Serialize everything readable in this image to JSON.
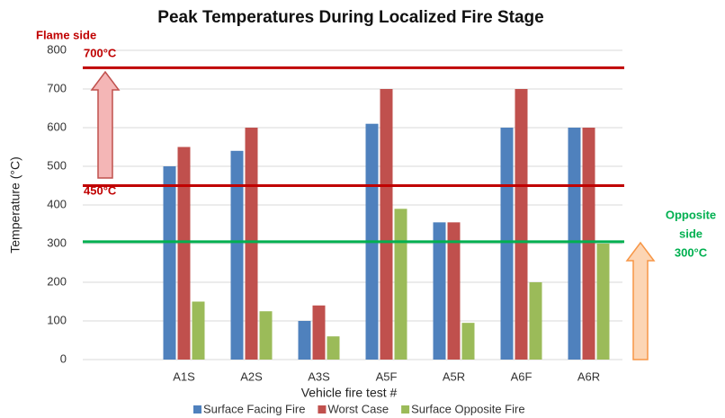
{
  "chart_data": {
    "type": "bar",
    "title": "Peak Temperatures During Localized Fire Stage",
    "xlabel": "Vehicle fire test #",
    "ylabel": "Temperature (°C)",
    "categories": [
      null,
      "A1S",
      "A2S",
      "A3S",
      "A5F",
      "A5R",
      "A6F",
      "A6R"
    ],
    "series": [
      {
        "name": "Surface Facing Fire",
        "color": "#4f81bd",
        "values": [
          null,
          500,
          540,
          100,
          610,
          355,
          600,
          600
        ]
      },
      {
        "name": "Worst Case",
        "color": "#c0504d",
        "values": [
          null,
          550,
          600,
          140,
          700,
          355,
          700,
          600
        ]
      },
      {
        "name": "Surface Opposite Fire",
        "color": "#9bbb59",
        "values": [
          null,
          150,
          125,
          60,
          390,
          95,
          200,
          300
        ]
      }
    ],
    "ylim": [
      0,
      800
    ],
    "yticks": [
      0,
      100,
      200,
      300,
      400,
      500,
      600,
      700,
      800
    ],
    "grid": true,
    "legend": "bottom",
    "reference_lines": [
      {
        "value": 755,
        "color": "#c00000"
      },
      {
        "value": 450,
        "color": "#c00000"
      },
      {
        "value": 305,
        "color": "#00b050"
      }
    ],
    "annotations": [
      "Flame side",
      "700°C",
      "450°C",
      "Opposite",
      "side",
      "300°C"
    ]
  }
}
